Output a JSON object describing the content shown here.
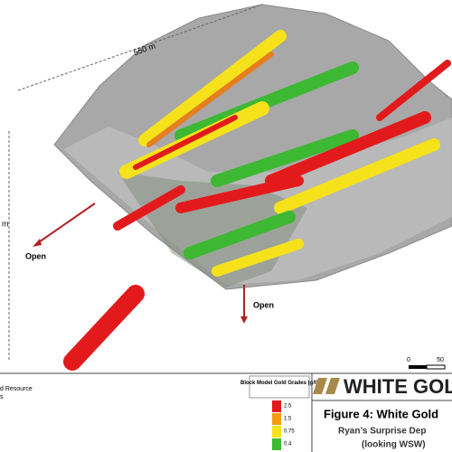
{
  "figure": {
    "dimension_label": "550 m",
    "vertical_label": "m",
    "open_labels": [
      "Open",
      "Open"
    ],
    "scale_bar": {
      "ticks": [
        "0",
        "50"
      ]
    },
    "legend_left": [
      "d Resource",
      "s"
    ],
    "legend": {
      "title": "Block Model Gold Grades (g/t)",
      "items": [
        {
          "value": 2.5,
          "color": "#e31a1c"
        },
        {
          "value": 1.5,
          "color": "#f39c12"
        },
        {
          "value": 0.75,
          "color": "#f5e21b"
        },
        {
          "value": 0.4,
          "color": "#3cb832"
        }
      ]
    },
    "logo": "WHITE GOL",
    "caption": {
      "title": "Figure 4: White Gold",
      "subtitle": "Ryan’s Surprise Dep",
      "view": "(looking WSW)"
    }
  }
}
